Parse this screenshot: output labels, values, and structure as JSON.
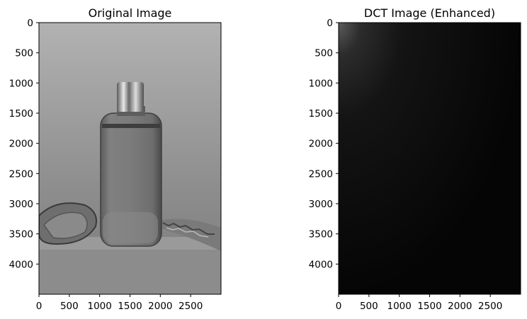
{
  "chart_data": [
    {
      "type": "image",
      "title": "Original Image",
      "xlim": [
        0,
        3000
      ],
      "ylim": [
        4500,
        0
      ],
      "x_ticks": [
        0,
        500,
        1000,
        1500,
        2000,
        2500
      ],
      "y_ticks": [
        0,
        500,
        1000,
        1500,
        2000,
        2500,
        3000,
        3500,
        4000
      ],
      "xlabel": "",
      "ylabel": "",
      "colormap": "gray",
      "content": "grayscale photograph"
    },
    {
      "type": "image",
      "title": "DCT Image (Enhanced)",
      "xlim": [
        0,
        3000
      ],
      "ylim": [
        4500,
        0
      ],
      "x_ticks": [
        0,
        500,
        1000,
        1500,
        2000,
        2500
      ],
      "y_ticks": [
        0,
        500,
        1000,
        1500,
        2000,
        2500,
        3000,
        3500,
        4000
      ],
      "xlabel": "",
      "ylabel": "",
      "colormap": "gray",
      "content": "DCT coefficient magnitude, bright at top-left, dark elsewhere"
    }
  ],
  "colors": {
    "axis": "#000000",
    "background": "#ffffff"
  }
}
